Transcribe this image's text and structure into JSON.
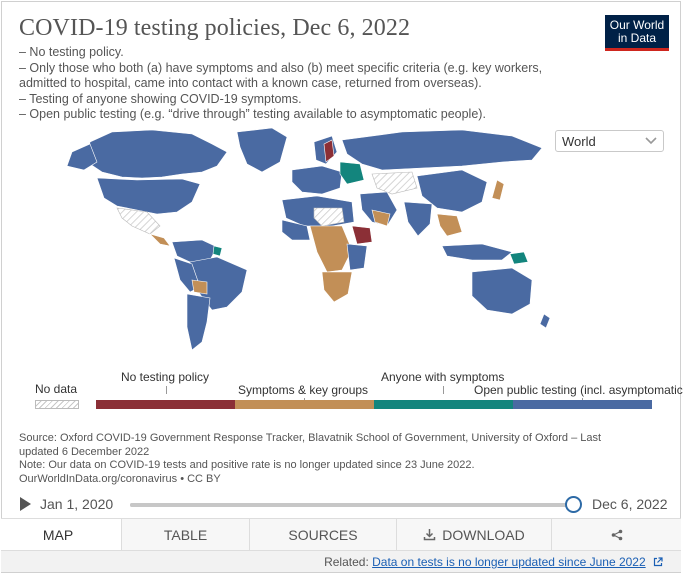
{
  "header": {
    "title": "COVID-19 testing policies, Dec 6, 2022",
    "subtitle_lines": [
      "– No testing policy.",
      "– Only those who both (a) have symptoms and also (b) meet specific criteria (e.g. key workers,",
      "admitted to hospital, came into contact with a known case, returned from overseas).",
      "– Testing of anyone showing COVID-19 symptoms.",
      "– Open public testing (e.g. “drive through” testing available to asymptomatic people)."
    ],
    "logo_line1": "Our World",
    "logo_line2": "in Data"
  },
  "region_select": {
    "value": "World",
    "icon": "chevron-down-icon"
  },
  "colors": {
    "no_testing": "#8b2f36",
    "symptoms_key_groups": "#c28f57",
    "anyone_with_symptoms": "#13857d",
    "open_public": "#4a6aa2",
    "no_data": "#e8e8e8",
    "ocean": "#ffffff"
  },
  "legend": {
    "no_data_label": "No data",
    "items": [
      {
        "label": "No testing policy",
        "color": "#8b2f36"
      },
      {
        "label": "Symptoms & key groups",
        "color": "#c28f57"
      },
      {
        "label": "Anyone with symptoms",
        "color": "#13857d"
      },
      {
        "label": "Open public testing (incl. asymptomatic)",
        "color": "#4a6aa2"
      }
    ]
  },
  "sources": {
    "line1": "Source: Oxford COVID-19 Government Response Tracker, Blavatnik School of Government, University of Oxford – Last",
    "line2": "updated 6 December 2022",
    "line3": "Note: Our data on COVID-19 tests and positive rate is no longer updated since 23 June 2022.",
    "line4": "OurWorldInData.org/coronavirus • CC BY"
  },
  "timeline": {
    "start_label": "Jan 1, 2020",
    "end_label": "Dec 6, 2022",
    "position": 1.0
  },
  "tabs": [
    {
      "label": "MAP",
      "active": true
    },
    {
      "label": "TABLE",
      "active": false
    },
    {
      "label": "SOURCES",
      "active": false
    },
    {
      "label": "DOWNLOAD",
      "active": false,
      "icon": "download-icon"
    },
    {
      "label": "",
      "active": false,
      "icon": "share-icon"
    }
  ],
  "related": {
    "prefix": "Related:",
    "link_text": "Data on tests is no longer updated since June 2022"
  }
}
